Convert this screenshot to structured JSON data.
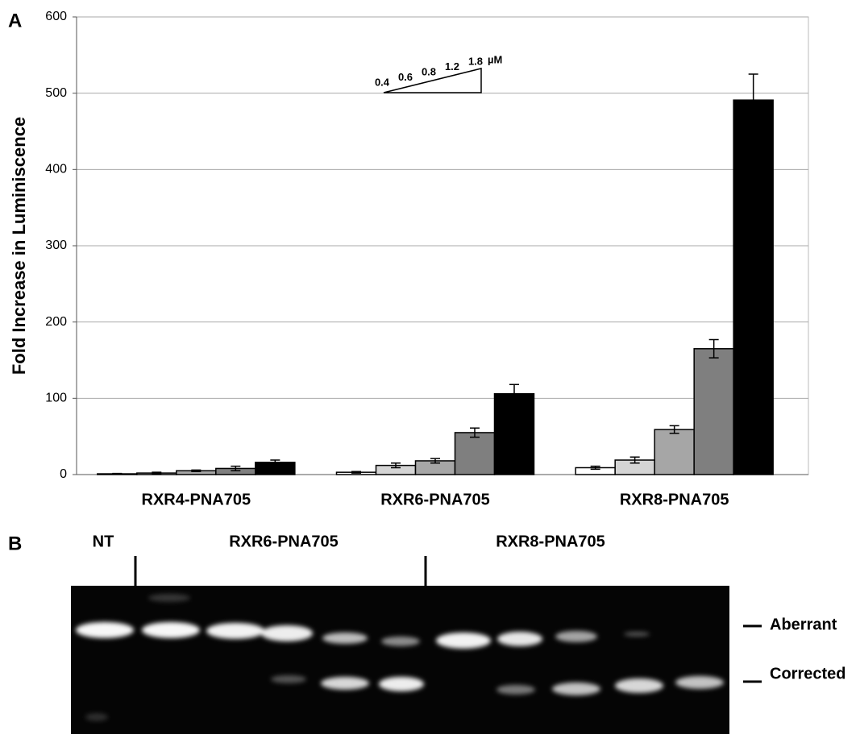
{
  "chart_data": {
    "type": "bar",
    "panel_label": "A",
    "y_label": "Fold Increase in Luminiscence",
    "categories": [
      "RXR4-PNA705",
      "RXR6-PNA705",
      "RXR8-PNA705"
    ],
    "series": [
      {
        "name": "0.4",
        "color": "#ffffff",
        "values": [
          1,
          3,
          9
        ],
        "errors": [
          0.5,
          1,
          2
        ]
      },
      {
        "name": "0.6",
        "color": "#d4d4d4",
        "values": [
          2,
          12,
          19
        ],
        "errors": [
          1,
          3,
          4
        ]
      },
      {
        "name": "0.8",
        "color": "#a6a6a6",
        "values": [
          5,
          18,
          59
        ],
        "errors": [
          1,
          3,
          5
        ]
      },
      {
        "name": "1.2",
        "color": "#7f7f7f",
        "values": [
          8,
          55,
          165
        ],
        "errors": [
          3,
          6,
          12
        ]
      },
      {
        "name": "1.8",
        "color": "#000000",
        "values": [
          16,
          106,
          491
        ],
        "errors": [
          3,
          12,
          34
        ]
      }
    ],
    "unit": "µM",
    "ylim": [
      0,
      600
    ],
    "yticks": [
      0,
      100,
      200,
      300,
      400,
      500,
      600
    ],
    "grid": true
  },
  "panel_b": {
    "label": "B",
    "lanes": [
      "NT",
      "RXR6-PNA705",
      "RXR8-PNA705"
    ],
    "bands": [
      "Aberrant",
      "Corrected"
    ]
  }
}
